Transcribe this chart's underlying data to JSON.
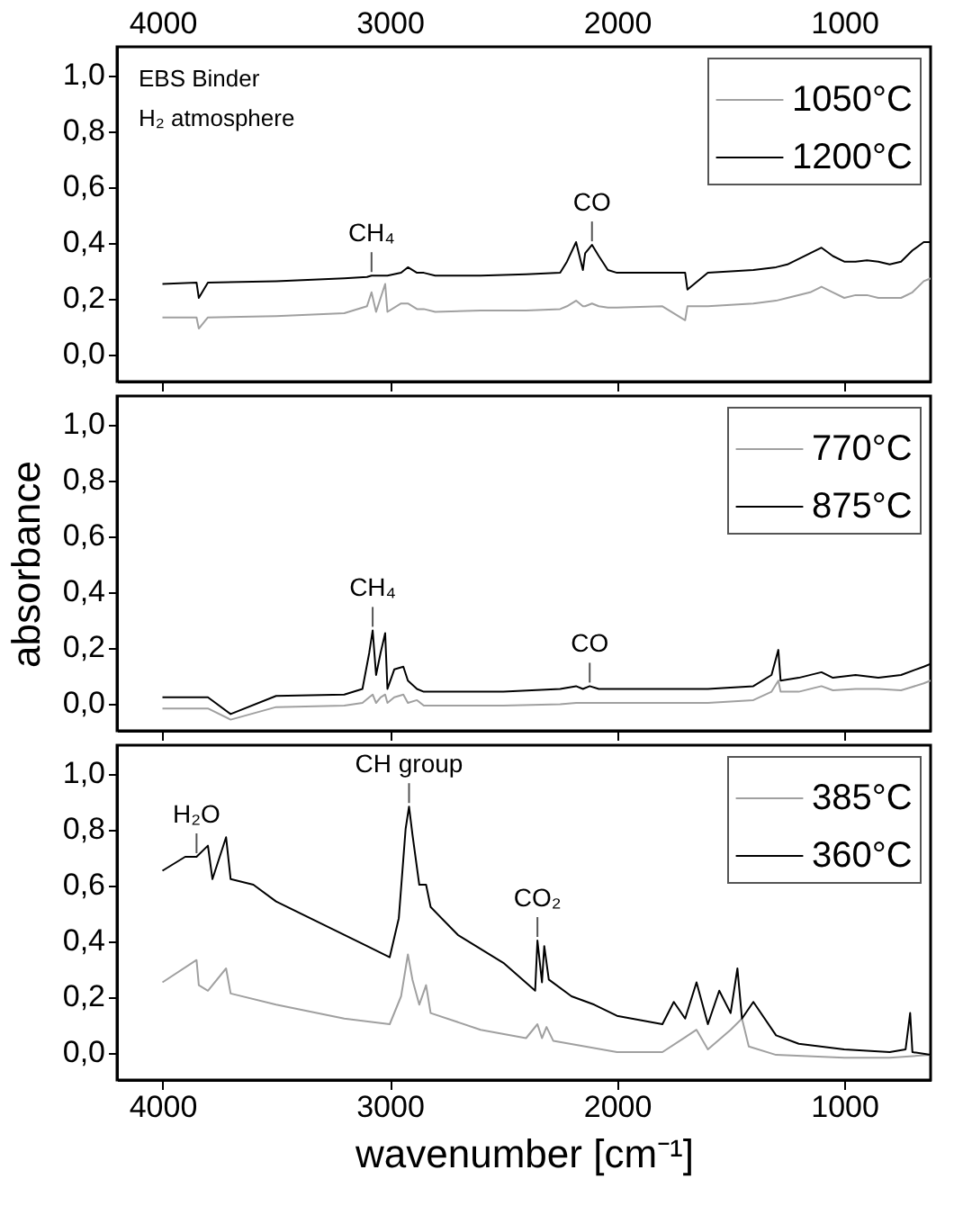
{
  "chart_data": [
    {
      "type": "line",
      "xlim": [
        4200,
        620
      ],
      "xticks": [
        4000,
        3000,
        2000,
        1000
      ],
      "x2lim": [
        4200,
        620
      ],
      "x2ticks": [
        4000,
        3000,
        2000,
        1000
      ],
      "ylim": [
        -0.1,
        1.1
      ],
      "yticks": [
        {
          "value": 0,
          "label": "0,0"
        },
        {
          "value": 0.2,
          "label": "0,2"
        },
        {
          "value": 0.4,
          "label": "0,4"
        },
        {
          "value": 0.6,
          "label": "0,6"
        },
        {
          "value": 0.8,
          "label": "0,8"
        },
        {
          "value": 1,
          "label": "1,0"
        }
      ],
      "tick_labels": "y",
      "legend": "top right",
      "x": [
        4000,
        3850,
        3840,
        3800,
        3500,
        3200,
        3100,
        3080,
        3060,
        3020,
        3010,
        2950,
        2920,
        2880,
        2850,
        2800,
        2600,
        2400,
        2250,
        2220,
        2180,
        2150,
        2140,
        2110,
        2080,
        2040,
        2000,
        1800,
        1700,
        1690,
        1600,
        1400,
        1300,
        1250,
        1150,
        1100,
        1050,
        1000,
        950,
        900,
        850,
        800,
        750,
        700,
        650,
        620
      ],
      "series": [
        {
          "name": "1050°C",
          "color": "#a0a0a0",
          "values": [
            0.13,
            0.13,
            0.09,
            0.13,
            0.135,
            0.145,
            0.17,
            0.22,
            0.15,
            0.25,
            0.15,
            0.18,
            0.18,
            0.16,
            0.16,
            0.15,
            0.155,
            0.155,
            0.16,
            0.17,
            0.19,
            0.17,
            0.17,
            0.18,
            0.17,
            0.165,
            0.165,
            0.17,
            0.12,
            0.17,
            0.17,
            0.18,
            0.19,
            0.2,
            0.22,
            0.24,
            0.22,
            0.2,
            0.21,
            0.21,
            0.2,
            0.2,
            0.2,
            0.22,
            0.26,
            0.27
          ]
        },
        {
          "name": "1200°C",
          "color": "#000000",
          "values": [
            0.25,
            0.255,
            0.2,
            0.255,
            0.26,
            0.27,
            0.275,
            0.28,
            0.28,
            0.28,
            0.28,
            0.29,
            0.31,
            0.29,
            0.29,
            0.28,
            0.28,
            0.285,
            0.29,
            0.33,
            0.4,
            0.3,
            0.36,
            0.39,
            0.35,
            0.3,
            0.29,
            0.29,
            0.29,
            0.23,
            0.29,
            0.3,
            0.31,
            0.32,
            0.36,
            0.38,
            0.35,
            0.33,
            0.33,
            0.335,
            0.33,
            0.32,
            0.33,
            0.37,
            0.4,
            0.4
          ]
        }
      ],
      "annotations": [
        "EBS Binder",
        "H₂ atmosphere",
        {
          "text": "CH₄",
          "x": 3080,
          "y": 0.28
        },
        {
          "text": "CO",
          "x": 2110,
          "y": 0.39
        }
      ]
    },
    {
      "type": "line",
      "ylabel": "absorbance",
      "xlim": [
        4200,
        620
      ],
      "xticks": [
        4000,
        3000,
        2000,
        1000
      ],
      "ylim": [
        -0.1,
        1.1
      ],
      "yticks": [
        {
          "value": 0,
          "label": "0,0"
        },
        {
          "value": 0.2,
          "label": "0,2"
        },
        {
          "value": 0.4,
          "label": "0,4"
        },
        {
          "value": 0.6,
          "label": "0,6"
        },
        {
          "value": 0.8,
          "label": "0,8"
        },
        {
          "value": 1,
          "label": "1,0"
        }
      ],
      "tick_labels": "y",
      "legend": "top right",
      "x": [
        4000,
        3800,
        3700,
        3500,
        3200,
        3120,
        3090,
        3075,
        3060,
        3040,
        3020,
        3010,
        2980,
        2940,
        2920,
        2880,
        2850,
        2500,
        2250,
        2180,
        2150,
        2120,
        2080,
        1800,
        1600,
        1400,
        1320,
        1290,
        1280,
        1200,
        1100,
        1050,
        950,
        850,
        750,
        650,
        620
      ],
      "series": [
        {
          "name": "770°C",
          "color": "#a0a0a0",
          "values": [
            -0.02,
            -0.02,
            -0.06,
            -0.015,
            -0.01,
            0.0,
            0.02,
            0.03,
            0.0,
            0.02,
            0.03,
            0.0,
            0.02,
            0.03,
            0.0,
            0.01,
            -0.01,
            -0.01,
            -0.005,
            0.0,
            0.0,
            0.0,
            0.0,
            0.0,
            0.0,
            0.01,
            0.04,
            0.08,
            0.04,
            0.04,
            0.06,
            0.045,
            0.05,
            0.05,
            0.045,
            0.07,
            0.08
          ]
        },
        {
          "name": "875°C",
          "color": "#000000",
          "values": [
            0.02,
            0.02,
            -0.04,
            0.025,
            0.03,
            0.05,
            0.18,
            0.26,
            0.1,
            0.18,
            0.25,
            0.05,
            0.12,
            0.13,
            0.08,
            0.05,
            0.04,
            0.04,
            0.05,
            0.06,
            0.05,
            0.06,
            0.05,
            0.05,
            0.05,
            0.06,
            0.1,
            0.19,
            0.08,
            0.09,
            0.11,
            0.09,
            0.1,
            0.09,
            0.1,
            0.13,
            0.14
          ]
        }
      ],
      "annotations": [
        {
          "text": "CH₄",
          "x": 3075,
          "y": 0.26
        },
        {
          "text": "CO",
          "x": 2120,
          "y": 0.06
        }
      ]
    },
    {
      "type": "line",
      "xlabel": "wavenumber [cm⁻¹]",
      "xlim": [
        4200,
        620
      ],
      "xticks": [
        4000,
        3000,
        2000,
        1000
      ],
      "ylim": [
        -0.1,
        1.1
      ],
      "yticks": [
        {
          "value": 0,
          "label": "0,0"
        },
        {
          "value": 0.2,
          "label": "0,2"
        },
        {
          "value": 0.4,
          "label": "0,4"
        },
        {
          "value": 0.6,
          "label": "0,6"
        },
        {
          "value": 0.8,
          "label": "0,8"
        },
        {
          "value": 1,
          "label": "1,0"
        }
      ],
      "legend": "top right",
      "series": [
        {
          "name": "385°C",
          "color": "#a0a0a0",
          "x": [
            4000,
            3850,
            3840,
            3800,
            3720,
            3700,
            3500,
            3200,
            3000,
            2950,
            2920,
            2900,
            2870,
            2840,
            2820,
            2600,
            2400,
            2350,
            2330,
            2310,
            2280,
            2000,
            1800,
            1650,
            1600,
            1500,
            1450,
            1420,
            1300,
            1000,
            800,
            620
          ],
          "values": [
            0.25,
            0.33,
            0.24,
            0.22,
            0.3,
            0.21,
            0.17,
            0.12,
            0.1,
            0.2,
            0.35,
            0.26,
            0.17,
            0.24,
            0.14,
            0.08,
            0.05,
            0.1,
            0.05,
            0.09,
            0.04,
            0.0,
            0.0,
            0.08,
            0.01,
            0.08,
            0.12,
            0.02,
            -0.01,
            -0.02,
            -0.02,
            -0.01
          ]
        },
        {
          "name": "360°C",
          "color": "#000000",
          "x": [
            4000,
            3900,
            3850,
            3800,
            3780,
            3720,
            3700,
            3600,
            3500,
            3300,
            3100,
            3000,
            2960,
            2930,
            2915,
            2900,
            2870,
            2840,
            2820,
            2700,
            2500,
            2360,
            2350,
            2330,
            2320,
            2300,
            2200,
            2100,
            2000,
            1800,
            1750,
            1700,
            1650,
            1600,
            1550,
            1500,
            1470,
            1450,
            1400,
            1300,
            1200,
            1000,
            800,
            730,
            710,
            700,
            620
          ],
          "values": [
            0.65,
            0.7,
            0.7,
            0.74,
            0.62,
            0.77,
            0.62,
            0.6,
            0.54,
            0.46,
            0.38,
            0.34,
            0.48,
            0.8,
            0.88,
            0.78,
            0.6,
            0.6,
            0.52,
            0.42,
            0.32,
            0.22,
            0.4,
            0.25,
            0.38,
            0.26,
            0.2,
            0.17,
            0.13,
            0.1,
            0.18,
            0.12,
            0.25,
            0.1,
            0.22,
            0.14,
            0.3,
            0.12,
            0.18,
            0.06,
            0.03,
            0.01,
            0.0,
            0.01,
            0.14,
            0.0,
            -0.01
          ]
        }
      ],
      "annotations": [
        {
          "text": "H₂O",
          "x": 3850,
          "y": 0.7
        },
        {
          "text": "CH group",
          "x": 2915,
          "y": 0.88
        },
        {
          "text": "CO₂",
          "x": 2350,
          "y": 0.4
        }
      ]
    }
  ]
}
